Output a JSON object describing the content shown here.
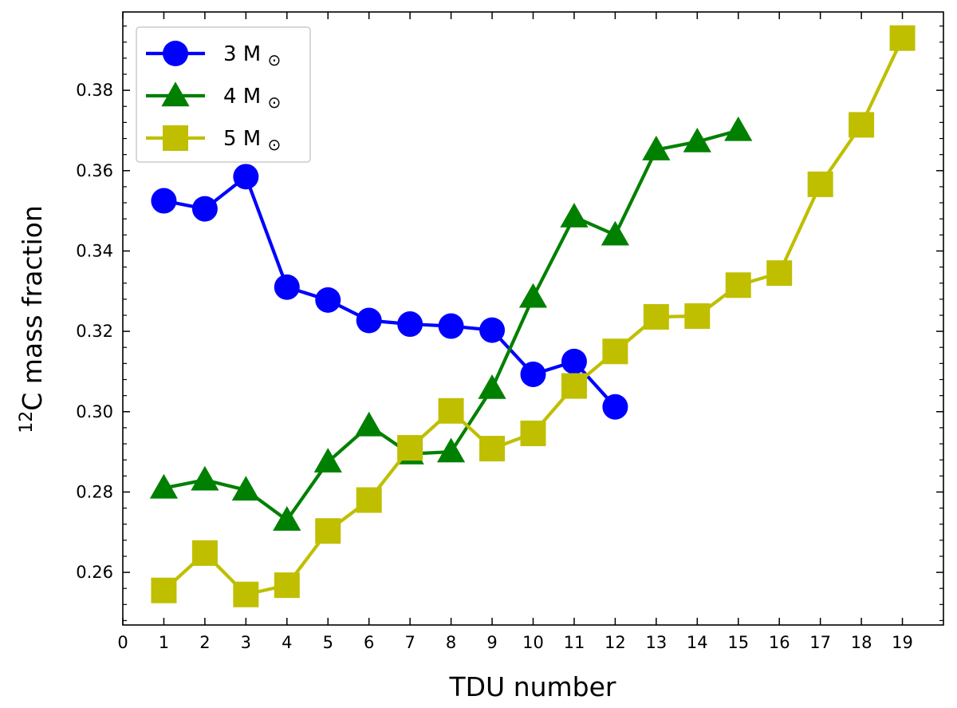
{
  "chart_data": {
    "type": "line",
    "xlabel": "TDU number",
    "ylabel": {
      "sup": "12",
      "text": "C mass fraction"
    },
    "xlim": [
      0,
      20
    ],
    "ylim": [
      0.2469,
      0.3995
    ],
    "xticks": [
      "0",
      "1",
      "2",
      "3",
      "4",
      "5",
      "6",
      "7",
      "8",
      "9",
      "10",
      "11",
      "12",
      "13",
      "14",
      "15",
      "16",
      "17",
      "18",
      "19"
    ],
    "yticks": [
      "0.26",
      "0.28",
      "0.30",
      "0.32",
      "0.34",
      "0.36",
      "0.38"
    ],
    "grid": false,
    "legend_position": "top-left",
    "series": [
      {
        "name": "3 M",
        "legend_symbol": "⊙",
        "color": "#0000ff",
        "marker": "circle",
        "x": [
          1,
          2,
          3,
          4,
          5,
          6,
          7,
          8,
          9,
          10,
          11,
          12
        ],
        "y": [
          0.3525,
          0.3505,
          0.3585,
          0.331,
          0.3278,
          0.3227,
          0.3218,
          0.3213,
          0.3203,
          0.3093,
          0.3125,
          0.3012
        ]
      },
      {
        "name": "4 M",
        "legend_symbol": "⊙",
        "color": "#008000",
        "marker": "triangle",
        "x": [
          1,
          2,
          3,
          4,
          5,
          6,
          7,
          8,
          9,
          10,
          11,
          12,
          13,
          14,
          15
        ],
        "y": [
          0.281,
          0.283,
          0.2805,
          0.273,
          0.2875,
          0.2965,
          0.2895,
          0.29,
          0.3058,
          0.3285,
          0.3485,
          0.344,
          0.3652,
          0.3672,
          0.37
        ]
      },
      {
        "name": "5 M",
        "legend_symbol": "⊙",
        "color": "#bfbf00",
        "marker": "square",
        "x": [
          1,
          2,
          3,
          4,
          5,
          6,
          7,
          8,
          9,
          10,
          11,
          12,
          13,
          14,
          15,
          16,
          17,
          18,
          19
        ],
        "y": [
          0.2555,
          0.2648,
          0.2545,
          0.2568,
          0.2703,
          0.278,
          0.291,
          0.3002,
          0.2908,
          0.2946,
          0.3064,
          0.315,
          0.3236,
          0.3238,
          0.3315,
          0.3345,
          0.3566,
          0.3714,
          0.393
        ]
      }
    ]
  }
}
